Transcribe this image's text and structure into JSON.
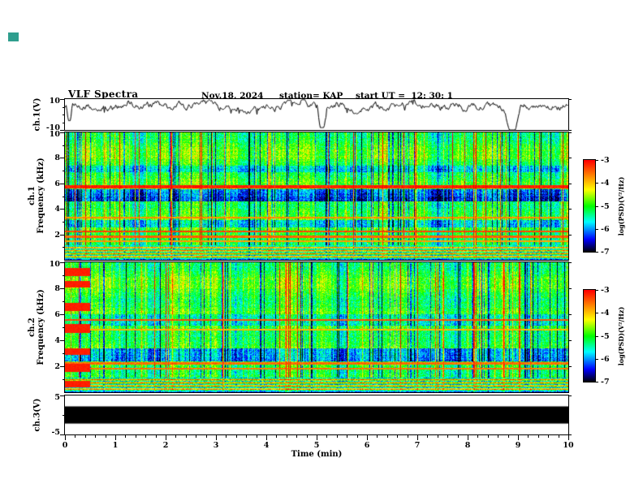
{
  "header": {
    "title": "VLF Spectra",
    "date": "Nov.18, 2024",
    "station": "station= KAP",
    "start_ut": "start UT =  12: 30: 1"
  },
  "x_axis": {
    "label": "Time (min)",
    "ticks": [
      "0",
      "1",
      "2",
      "3",
      "4",
      "5",
      "6",
      "7",
      "8",
      "9",
      "10"
    ],
    "range": [
      0,
      10
    ]
  },
  "panels": {
    "ch1_wave": {
      "ylabel": "ch.1(V)",
      "ylim": [
        -10,
        10
      ],
      "yticks": [
        {
          "v": 10,
          "t": "10"
        },
        {
          "v": -10,
          "t": "-10"
        }
      ]
    },
    "ch1_spec": {
      "ylabel_ch": "ch.1",
      "ylabel_axis": "Frequency (kHz)",
      "ylim": [
        0,
        10
      ],
      "yticks": [
        {
          "v": 10,
          "t": "10"
        },
        {
          "v": 8,
          "t": "8"
        },
        {
          "v": 6,
          "t": "6"
        },
        {
          "v": 4,
          "t": "4"
        },
        {
          "v": 2,
          "t": "2"
        }
      ]
    },
    "ch2_spec": {
      "ylabel_ch": "ch.2",
      "ylabel_axis": "Frequency (kHz)",
      "ylim": [
        0,
        10
      ],
      "yticks": [
        {
          "v": 10,
          "t": "10"
        },
        {
          "v": 8,
          "t": "8"
        },
        {
          "v": 6,
          "t": "6"
        },
        {
          "v": 4,
          "t": "4"
        },
        {
          "v": 2,
          "t": "2"
        }
      ]
    },
    "ch3_wave": {
      "ylabel": "ch.3(V)",
      "ylim": [
        -5,
        5
      ],
      "yticks": [
        {
          "v": 5,
          "t": "5"
        },
        {
          "v": -5,
          "t": "-5"
        }
      ]
    }
  },
  "colorbar": {
    "label": "log(PSD)(V²/Hz)",
    "range": [
      -7,
      -3
    ],
    "colormap": "jet",
    "ticks": [
      {
        "v": -3,
        "t": "-3"
      },
      {
        "v": -4,
        "t": "-4"
      },
      {
        "v": -5,
        "t": "-5"
      },
      {
        "v": -6,
        "t": "-6"
      },
      {
        "v": -7,
        "t": "-7"
      }
    ]
  },
  "decor": {
    "artifact_color": "#2f9e8e"
  },
  "chart_data": [
    {
      "type": "line",
      "name": "ch1-voltage-waveform",
      "ylabel": "ch.1(V)",
      "xlim": [
        0,
        10
      ],
      "ylim": [
        -10,
        10
      ],
      "baseline": 5.5,
      "noise_amplitude": 2.2,
      "dips": [
        {
          "x": 0.08,
          "depth": -4,
          "width": 0.06
        },
        {
          "x": 5.1,
          "depth": -8.5,
          "width": 0.1
        },
        {
          "x": 8.88,
          "depth": -10,
          "width": 0.16
        }
      ],
      "seed": 5
    },
    {
      "type": "heatmap",
      "name": "ch1-spectrogram",
      "xlabel": "Time (min)",
      "ylabel": "Frequency (kHz)",
      "channel": "ch.1",
      "xlim": [
        0,
        10
      ],
      "ylim": [
        0,
        10
      ],
      "zlabel": "log(PSD)(V²/Hz)",
      "zlim": [
        -7,
        -3
      ],
      "colormap": "jet",
      "background_psd": -5,
      "red_lines": [
        {
          "f": 5.75,
          "width": 0.12,
          "level": -3.15
        },
        {
          "f": 3.35,
          "width": 0.05,
          "level": -3.7
        },
        {
          "f": 2.25,
          "width": 0.06,
          "level": -3.35
        },
        {
          "f": 1.85,
          "width": 0.05,
          "level": -3.5
        },
        {
          "f": 1.5,
          "width": 0.05,
          "level": -3.8
        }
      ],
      "dark_bands": [
        {
          "range": [
            4.6,
            5.6
          ],
          "delta": -1.25
        },
        {
          "range": [
            2.6,
            3.15
          ],
          "delta": -0.95
        },
        {
          "range": [
            6.9,
            7.45
          ],
          "delta": -0.55
        }
      ],
      "low_band_top": 1.15,
      "seed": 11
    },
    {
      "type": "heatmap",
      "name": "ch2-spectrogram",
      "xlabel": "Time (min)",
      "ylabel": "Frequency (kHz)",
      "channel": "ch.2",
      "xlim": [
        0,
        10
      ],
      "ylim": [
        0,
        10
      ],
      "zlabel": "log(PSD)(V²/Hz)",
      "zlim": [
        -7,
        -3
      ],
      "colormap": "jet",
      "background_psd": -5,
      "red_lines": [
        {
          "f": 5.6,
          "width": 0.08,
          "level": -3.4
        },
        {
          "f": 2.25,
          "width": 0.05,
          "level": -3.55
        },
        {
          "f": 1.85,
          "width": 0.05,
          "level": -3.6
        },
        {
          "f": 4.85,
          "width": 0.05,
          "level": -3.9
        }
      ],
      "dark_bands": [
        {
          "range": [
            2.4,
            3.4
          ],
          "delta": -1.15
        },
        {
          "range": [
            5.15,
            6.05
          ],
          "delta": -0.7
        }
      ],
      "low_band_top": 1.15,
      "startup_blocks": {
        "t_max_min": 0.5,
        "bands_khz": [
          [
            9.0,
            9.6
          ],
          [
            8.1,
            8.6
          ],
          [
            6.3,
            6.9
          ],
          [
            4.6,
            5.3
          ],
          [
            2.9,
            3.4
          ],
          [
            1.6,
            2.2
          ],
          [
            0.4,
            0.9
          ]
        ]
      },
      "seed": 77
    },
    {
      "type": "line",
      "name": "ch3-voltage-waveform",
      "ylabel": "ch.3(V)",
      "xlim": [
        0,
        10
      ],
      "ylim": [
        -5,
        5
      ],
      "saturated_band": [
        -2.2,
        2.2
      ],
      "note": "continuous full-scale signal rendered as a solid black band"
    }
  ]
}
